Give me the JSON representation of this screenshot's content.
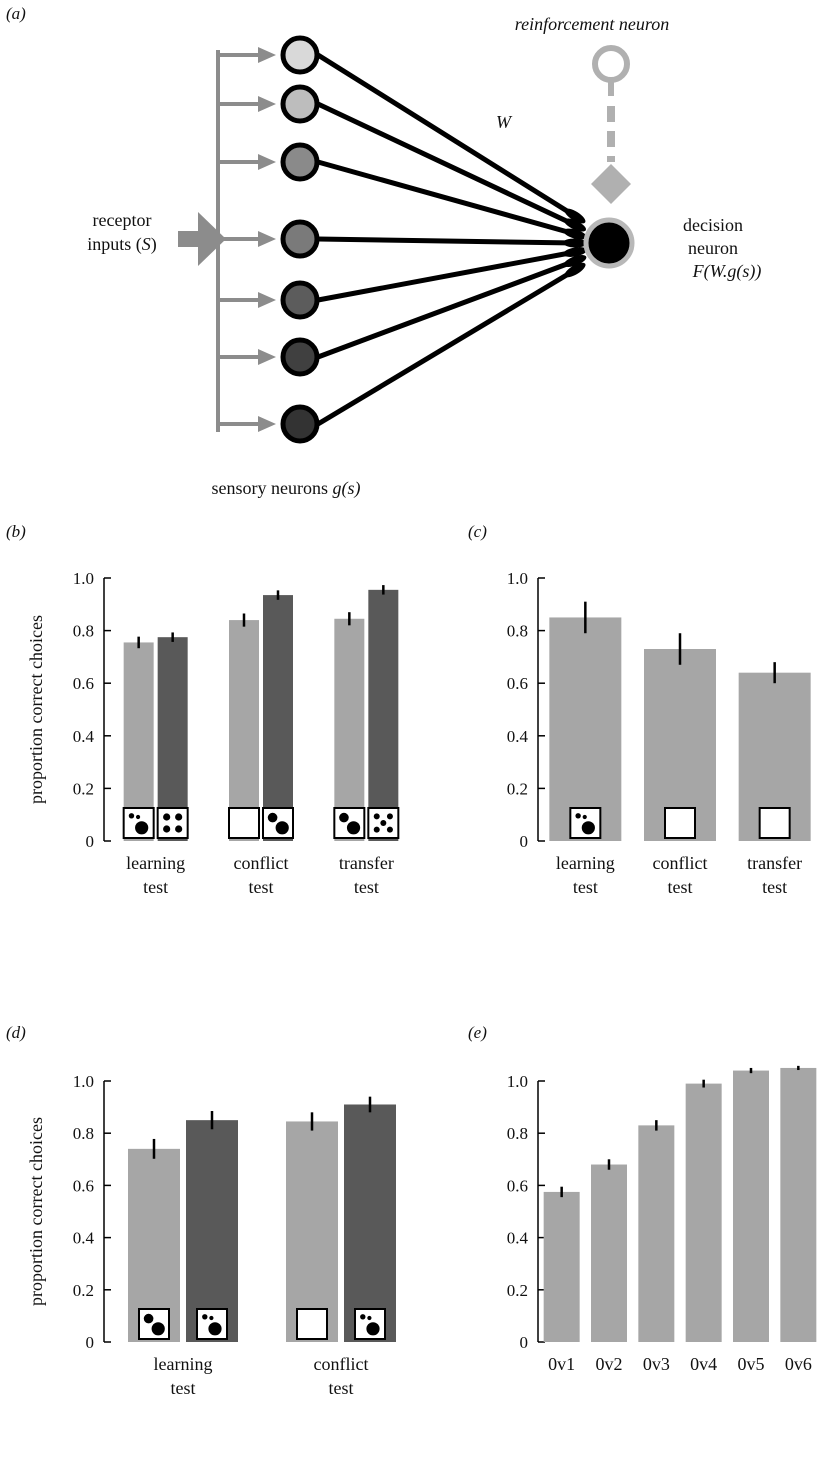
{
  "panel_a": {
    "letter": "(a)",
    "reinforcement_label": "reinforcement neuron",
    "weight_label": "W",
    "receptor_label_line1": "receptor",
    "receptor_label_line2_pre": "inputs (",
    "receptor_label_line2_sym": "S",
    "receptor_label_line2_post": ")",
    "decision_label_line1": "decision",
    "decision_label_line2": "neuron",
    "decision_label_line3": "F(W.g(s))",
    "sensory_label_pre": "sensory neurons ",
    "sensory_label_sym": "g(s)",
    "neuron_fills": [
      "#d9d9d9",
      "#bdbdbd",
      "#8a8a8a",
      "#7a7a7a",
      "#5c5c5c",
      "#404040",
      "#333333"
    ],
    "colors": {
      "input_gray": "#8c8c8c",
      "reinforce_gray": "#b0b0b0",
      "decision_fill": "#000000"
    }
  },
  "chart_data": [
    {
      "panel": "(b)",
      "type": "bar",
      "ylabel": "proportion correct choices",
      "ylim": [
        0,
        1.0
      ],
      "yticks": [
        "0",
        "0.2",
        "0.4",
        "0.6",
        "0.8",
        "1.0"
      ],
      "categories": [
        [
          "learning",
          "test"
        ],
        [
          "conflict",
          "test"
        ],
        [
          "transfer",
          "test"
        ]
      ],
      "series": [
        {
          "values": [
            0.755,
            0.84,
            0.845
          ],
          "errors": [
            0.022,
            0.025,
            0.025
          ],
          "color": "#a6a6a6"
        },
        {
          "values": [
            0.775,
            0.935,
            0.955
          ],
          "errors": [
            0.018,
            0.018,
            0.018
          ],
          "color": "#595959"
        }
      ],
      "icons": [
        [
          "dots-3",
          "dots-4"
        ],
        [
          "empty",
          "dots-2"
        ],
        [
          "dots-2",
          "dots-5"
        ]
      ]
    },
    {
      "panel": "(c)",
      "type": "bar",
      "ylabel": "",
      "ylim": [
        0,
        1.0
      ],
      "yticks": [
        "0",
        "0.2",
        "0.4",
        "0.6",
        "0.8",
        "1.0"
      ],
      "categories": [
        [
          "learning",
          "test"
        ],
        [
          "conflict",
          "test"
        ],
        [
          "transfer",
          "test"
        ]
      ],
      "series": [
        {
          "values": [
            0.85,
            0.73,
            0.64
          ],
          "errors": [
            0.06,
            0.06,
            0.04
          ],
          "color": "#a6a6a6"
        }
      ],
      "icons": [
        [
          "dots-3"
        ],
        [
          "empty"
        ],
        [
          "empty"
        ]
      ]
    },
    {
      "panel": "(d)",
      "type": "bar",
      "ylabel": "proportion correct choices",
      "ylim": [
        0,
        1.0
      ],
      "yticks": [
        "0",
        "0.2",
        "0.4",
        "0.6",
        "0.8",
        "1.0"
      ],
      "categories": [
        [
          "learning",
          "test"
        ],
        [
          "conflict",
          "test"
        ]
      ],
      "series": [
        {
          "values": [
            0.74,
            0.845
          ],
          "errors": [
            0.038,
            0.035
          ],
          "color": "#a6a6a6"
        },
        {
          "values": [
            0.85,
            0.91
          ],
          "errors": [
            0.035,
            0.03
          ],
          "color": "#595959"
        }
      ],
      "icons": [
        [
          "dots-2",
          "dots-3"
        ],
        [
          "empty",
          "dots-3"
        ]
      ]
    },
    {
      "panel": "(e)",
      "type": "bar",
      "ylabel": "",
      "ylim": [
        0,
        1.0
      ],
      "yticks": [
        "0",
        "0.2",
        "0.4",
        "0.6",
        "0.8",
        "1.0"
      ],
      "categories": [
        [
          "0v1"
        ],
        [
          "0v2"
        ],
        [
          "0v3"
        ],
        [
          "0v4"
        ],
        [
          "0v5"
        ],
        [
          "0v6"
        ]
      ],
      "series": [
        {
          "values": [
            0.575,
            0.68,
            0.83,
            0.99,
            1.04,
            1.05
          ],
          "errors": [
            0.02,
            0.02,
            0.02,
            0.015,
            0.01,
            0.008
          ],
          "color": "#a6a6a6"
        }
      ],
      "icons": []
    }
  ]
}
